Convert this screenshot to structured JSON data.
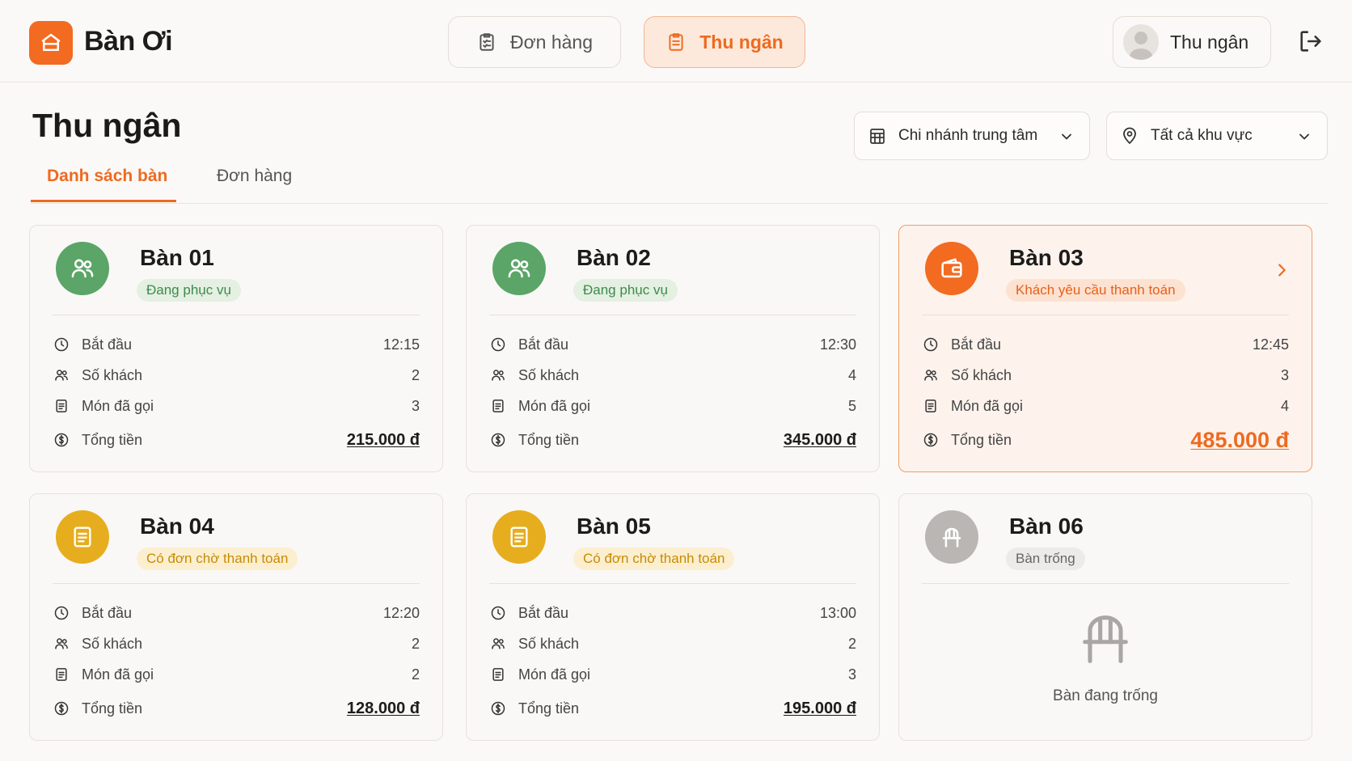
{
  "app": {
    "name": "Bàn Ơi",
    "brand_color": "#f26b21"
  },
  "nav": {
    "orders_label": "Đơn hàng",
    "cashier_label": "Thu ngân",
    "active": "cashier"
  },
  "user": {
    "role": "Thu ngân"
  },
  "page": {
    "title": "Thu ngân",
    "tabs": [
      {
        "label": "Danh sách bàn",
        "active": true
      },
      {
        "label": "Đơn hàng",
        "active": false
      }
    ]
  },
  "filters": {
    "branch": "Chi nhánh trung tâm",
    "area": "Tất cả khu vực"
  },
  "labels": {
    "start": "Bắt đầu",
    "guests": "Số khách",
    "items": "Món đã gọi",
    "total": "Tổng tiền"
  },
  "tables": [
    {
      "name": "Bàn 01",
      "status": "Đang phục vụ",
      "status_type": "serving",
      "start": "12:15",
      "guests": "2",
      "items": "3",
      "total": "215.000 đ"
    },
    {
      "name": "Bàn 02",
      "status": "Đang phục vụ",
      "status_type": "serving",
      "start": "12:30",
      "guests": "4",
      "items": "5",
      "total": "345.000 đ"
    },
    {
      "name": "Bàn 03",
      "status": "Khách yêu cầu thanh toán",
      "status_type": "payment-request",
      "start": "12:45",
      "guests": "3",
      "items": "4",
      "total": "485.000 đ"
    },
    {
      "name": "Bàn 04",
      "status": "Có đơn chờ thanh toán",
      "status_type": "pending",
      "start": "12:20",
      "guests": "2",
      "items": "2",
      "total": "128.000 đ"
    },
    {
      "name": "Bàn 05",
      "status": "Có đơn chờ thanh toán",
      "status_type": "pending",
      "start": "13:00",
      "guests": "2",
      "items": "3",
      "total": "195.000 đ"
    },
    {
      "name": "Bàn 06",
      "status": "Bàn trống",
      "status_type": "empty",
      "empty_text": "Bàn đang trống"
    }
  ],
  "colors": {
    "serving": "#5aa567",
    "payment_request": "#f26b21",
    "pending": "#e6ad1e",
    "empty": "#b9b6b3"
  }
}
